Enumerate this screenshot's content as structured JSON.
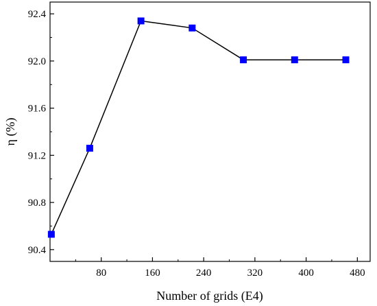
{
  "chart_data": {
    "type": "line",
    "title": "",
    "xlabel": "Number of grids (E4)",
    "ylabel": "η (%)",
    "xlim": [
      0,
      500
    ],
    "ylim": [
      90.3,
      92.5
    ],
    "xticks": [
      80,
      160,
      240,
      320,
      400,
      480
    ],
    "yticks": [
      90.4,
      90.8,
      91.2,
      91.6,
      92.0,
      92.4
    ],
    "xtick_labels": [
      "80",
      "160",
      "240",
      "320",
      "400",
      "480"
    ],
    "ytick_labels": [
      "90.4",
      "90.8",
      "91.2",
      "91.6",
      "92.0",
      "92.4"
    ],
    "grid": false,
    "legend": "none",
    "series": [
      {
        "marker": "square",
        "color": "#0000ff",
        "line_color": "#000000",
        "x": [
          2,
          62,
          142,
          222,
          302,
          382,
          462
        ],
        "y": [
          90.53,
          91.26,
          92.34,
          92.28,
          92.01,
          92.01,
          92.01
        ]
      }
    ]
  }
}
